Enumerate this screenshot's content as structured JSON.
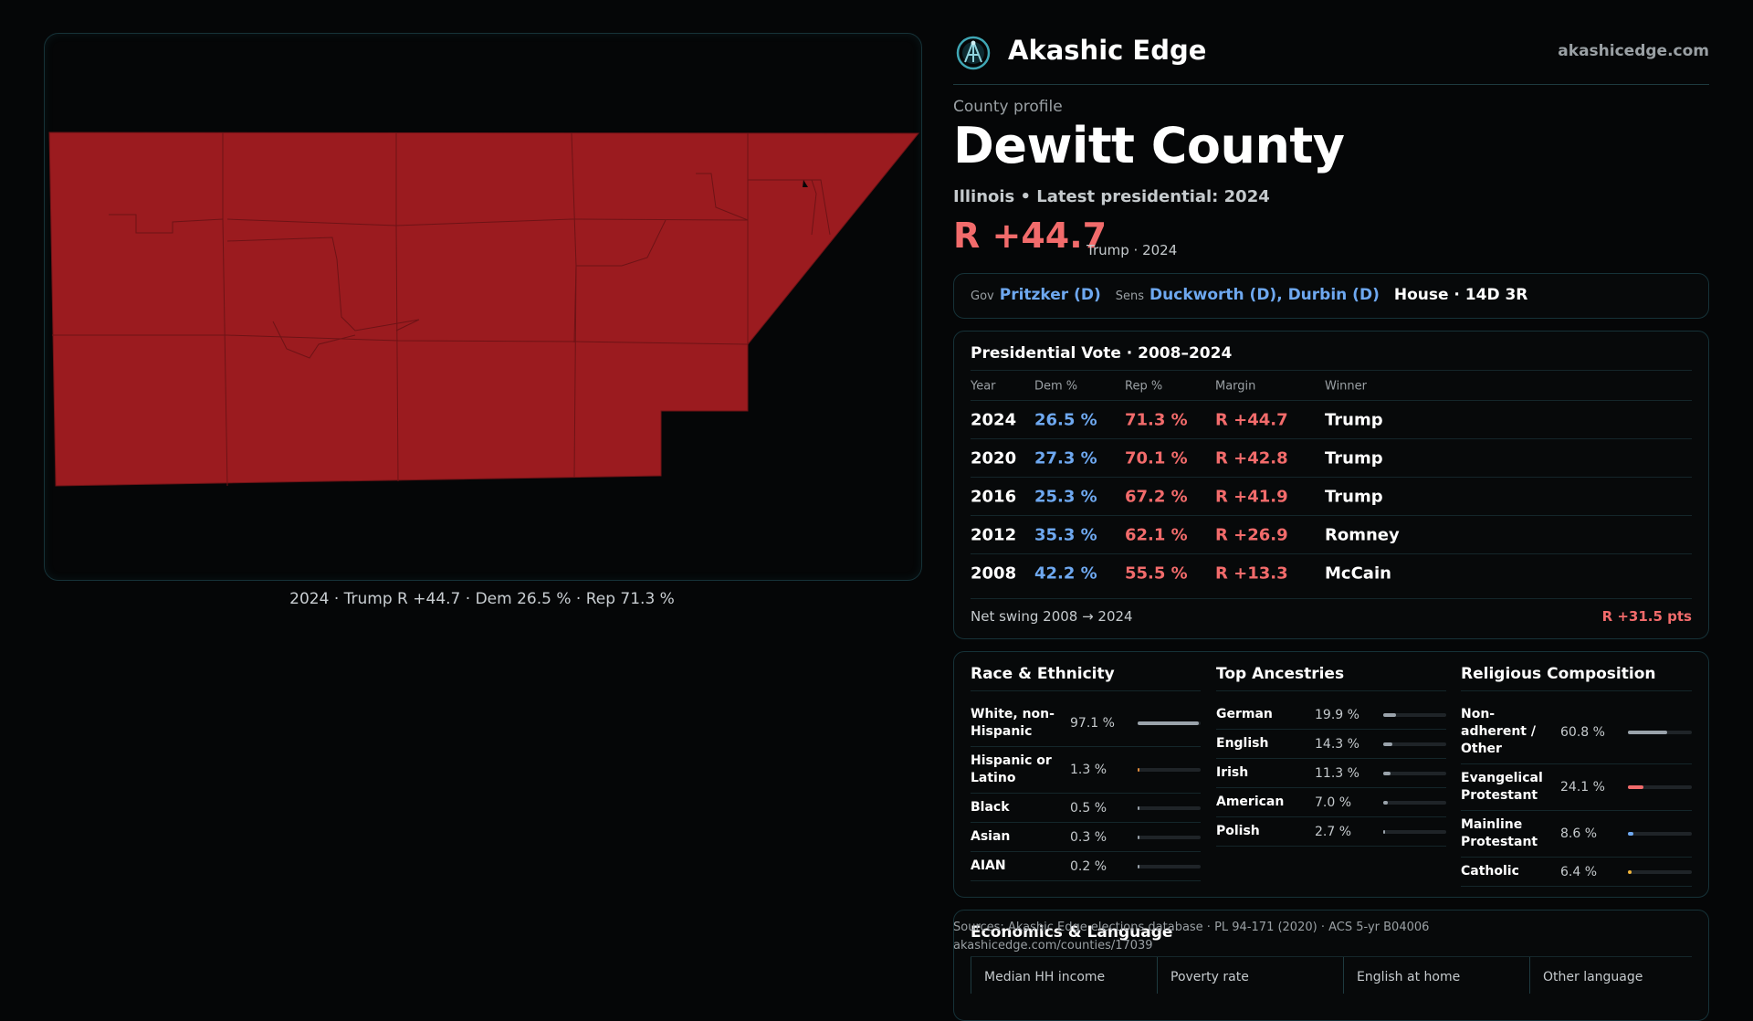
{
  "map": {
    "caption": "2024 · Trump R +44.7 · Dem 26.5 % · Rep 71.3 %",
    "fill_color": "#9b1b1f",
    "border_color": "#6e1316"
  },
  "header": {
    "brand": "Akashic Edge",
    "url": "akashicedge.com",
    "logo_icon": "globe-network-icon"
  },
  "profile": {
    "eyebrow": "County profile",
    "title": "Dewitt County",
    "subline": "Illinois • Latest presidential: 2024",
    "margin": "R +44.7",
    "margin_note": "Trump · 2024"
  },
  "officials": {
    "gov_label": "Gov",
    "gov": "Pritzker (D)",
    "sens_label": "Sens",
    "sens": "Duckworth (D), Durbin (D)",
    "house": "House · 14D 3R"
  },
  "presidential": {
    "title": "Presidential Vote · 2008–2024",
    "headers": [
      "Year",
      "Dem %",
      "Rep %",
      "Margin",
      "Winner"
    ],
    "rows": [
      {
        "year": "2024",
        "dem": "26.5 %",
        "rep": "71.3 %",
        "margin": "R +44.7",
        "winner": "Trump"
      },
      {
        "year": "2020",
        "dem": "27.3 %",
        "rep": "70.1 %",
        "margin": "R +42.8",
        "winner": "Trump"
      },
      {
        "year": "2016",
        "dem": "25.3 %",
        "rep": "67.2 %",
        "margin": "R +41.9",
        "winner": "Trump"
      },
      {
        "year": "2012",
        "dem": "35.3 %",
        "rep": "62.1 %",
        "margin": "R +26.9",
        "winner": "Romney"
      },
      {
        "year": "2008",
        "dem": "42.2 %",
        "rep": "55.5 %",
        "margin": "R +13.3",
        "winner": "McCain"
      }
    ],
    "swing_label": "Net swing 2008 → 2024",
    "swing_value": "R +31.5 pts"
  },
  "race": {
    "title": "Race & Ethnicity",
    "items": [
      {
        "label": "White, non-Hispanic",
        "value": "97.1 %",
        "fraction": 0.971,
        "color": "#9aa3ab"
      },
      {
        "label": "Hispanic or Latino",
        "value": "1.3 %",
        "fraction": 0.013,
        "color": "#e08a3a"
      },
      {
        "label": "Black",
        "value": "0.5 %",
        "fraction": 0.005,
        "color": "#9aa3ab"
      },
      {
        "label": "Asian",
        "value": "0.3 %",
        "fraction": 0.003,
        "color": "#9aa3ab"
      },
      {
        "label": "AIAN",
        "value": "0.2 %",
        "fraction": 0.002,
        "color": "#9aa3ab"
      }
    ]
  },
  "ancestry": {
    "title": "Top Ancestries",
    "items": [
      {
        "label": "German",
        "value": "19.9 %",
        "fraction": 0.199,
        "color": "#9aa3ab"
      },
      {
        "label": "English",
        "value": "14.3 %",
        "fraction": 0.143,
        "color": "#9aa3ab"
      },
      {
        "label": "Irish",
        "value": "11.3 %",
        "fraction": 0.113,
        "color": "#9aa3ab"
      },
      {
        "label": "American",
        "value": "7.0 %",
        "fraction": 0.07,
        "color": "#9aa3ab"
      },
      {
        "label": "Polish",
        "value": "2.7 %",
        "fraction": 0.027,
        "color": "#9aa3ab"
      }
    ]
  },
  "religion": {
    "title": "Religious Composition",
    "items": [
      {
        "label": "Non-adherent / Other",
        "value": "60.8 %",
        "fraction": 0.608,
        "color": "#9aa3ab"
      },
      {
        "label": "Evangelical Protestant",
        "value": "24.1 %",
        "fraction": 0.241,
        "color": "#f26b6b"
      },
      {
        "label": "Mainline Protestant",
        "value": "8.6 %",
        "fraction": 0.086,
        "color": "#6ea8f0"
      },
      {
        "label": "Catholic",
        "value": "6.4 %",
        "fraction": 0.064,
        "color": "#f0b43a"
      }
    ]
  },
  "economics": {
    "title": "Economics & Language",
    "headers": [
      "Median HH income",
      "Poverty rate",
      "English at home",
      "Other language"
    ]
  },
  "sources": {
    "line1": "Sources: Akashic Edge elections database · PL 94-171 (2020) · ACS 5-yr B04006",
    "line2": "akashicedge.com/counties/17039"
  }
}
